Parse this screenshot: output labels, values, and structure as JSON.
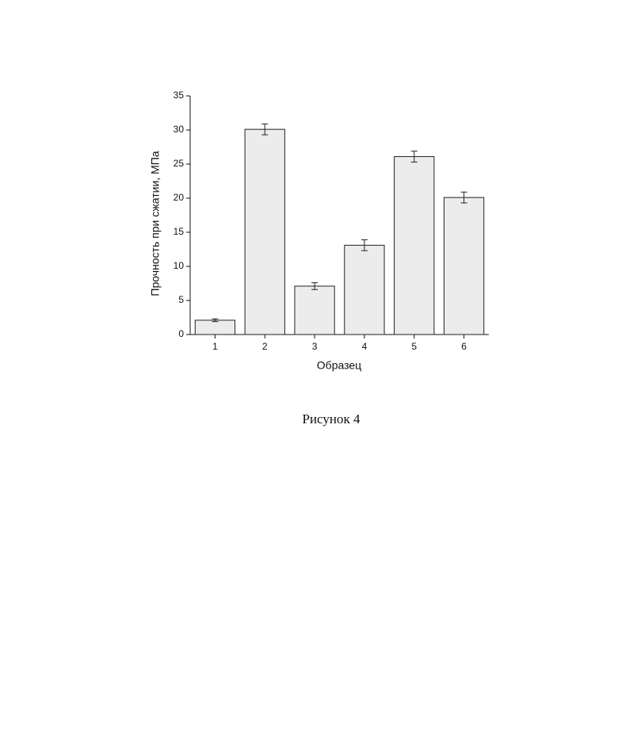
{
  "chart_data": {
    "type": "bar",
    "caption": "Рисунок 4",
    "x_label": "Образец",
    "y_label": "Прочность при сжатии, МПа",
    "categories": [
      "1",
      "2",
      "3",
      "4",
      "5",
      "6"
    ],
    "values": [
      2.1,
      30.1,
      7.1,
      13.1,
      26.1,
      20.1
    ],
    "errors": [
      0.2,
      0.8,
      0.5,
      0.8,
      0.8,
      0.8
    ],
    "color": "#ececec",
    "ylim": [
      0,
      35
    ],
    "yticks": [
      0,
      5,
      10,
      15,
      20,
      25,
      30,
      35
    ],
    "grid": false
  }
}
